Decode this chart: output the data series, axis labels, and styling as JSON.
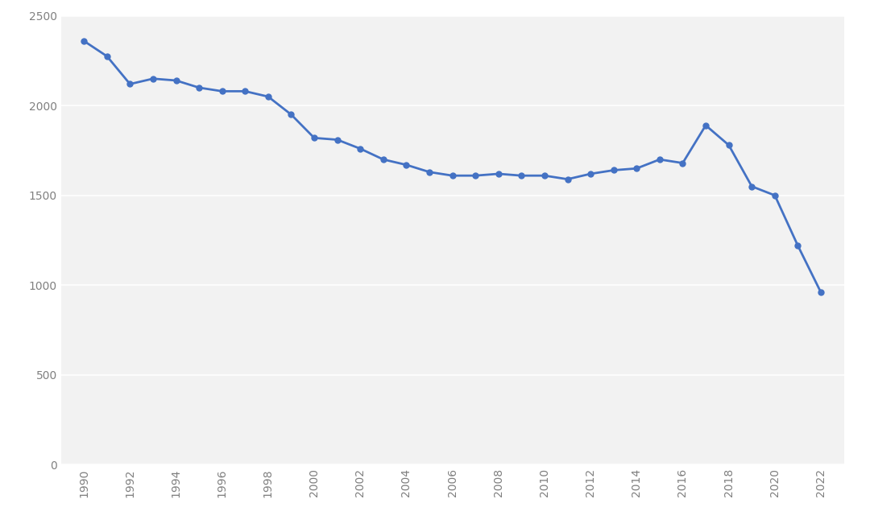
{
  "years": [
    1990,
    1991,
    1992,
    1993,
    1994,
    1995,
    1996,
    1997,
    1998,
    1999,
    2000,
    2001,
    2002,
    2003,
    2004,
    2005,
    2006,
    2007,
    2008,
    2009,
    2010,
    2011,
    2012,
    2013,
    2014,
    2015,
    2016,
    2017,
    2018,
    2019,
    2020,
    2021,
    2022
  ],
  "values": [
    2360,
    2275,
    2120,
    2150,
    2140,
    2100,
    2080,
    2080,
    2050,
    1950,
    1820,
    1810,
    1760,
    1700,
    1670,
    1630,
    1610,
    1610,
    1620,
    1610,
    1610,
    1590,
    1620,
    1640,
    1650,
    1700,
    1680,
    1890,
    1780,
    1550,
    1500,
    1220,
    960
  ],
  "line_color": "#4472C4",
  "marker_color": "#4472C4",
  "background_color": "#ffffff",
  "plot_background_color": "#f2f2f2",
  "grid_color": "#ffffff",
  "tick_label_color": "#808080",
  "ylim": [
    0,
    2500
  ],
  "yticks": [
    0,
    500,
    1000,
    1500,
    2000,
    2500
  ],
  "xtick_labels": [
    "1990",
    "1992",
    "1994",
    "1996",
    "1998",
    "2000",
    "2002",
    "2004",
    "2006",
    "2008",
    "2010",
    "2012",
    "2014",
    "2016",
    "2018",
    "2020",
    "2022"
  ],
  "xlim_left": 1989.0,
  "xlim_right": 2023.0,
  "linewidth": 2.0,
  "markersize": 5
}
